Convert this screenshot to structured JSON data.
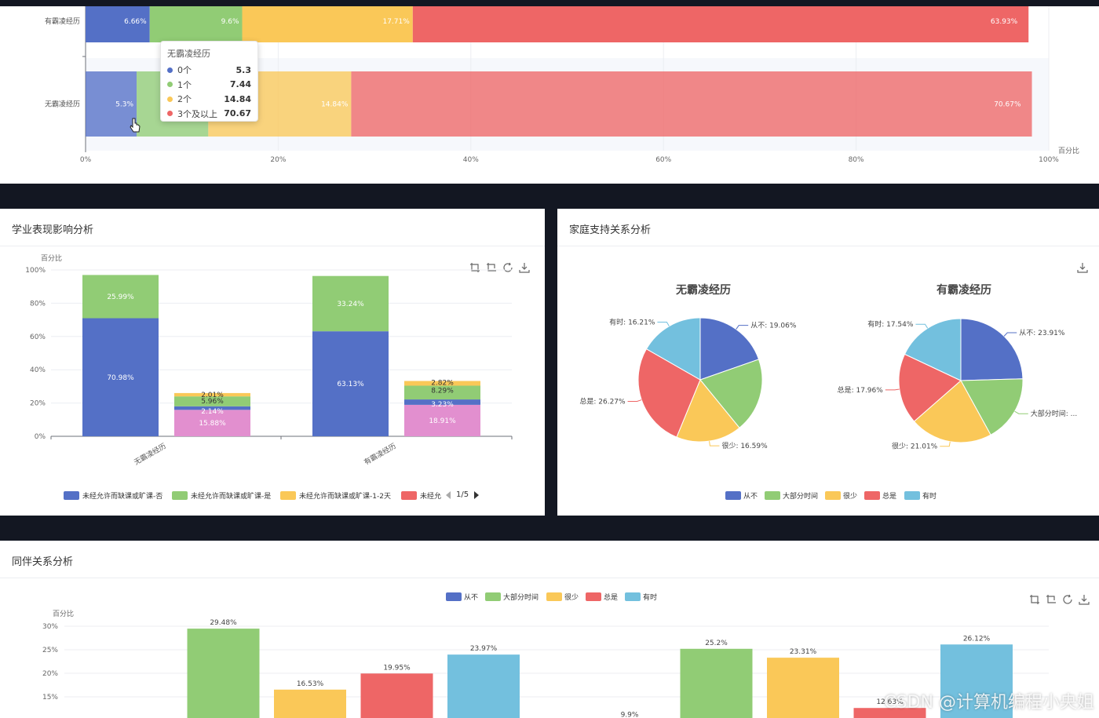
{
  "panels": {
    "academic_title": "学业表现影响分析",
    "family_title": "家庭支持关系分析",
    "peer_title": "同伴关系分析"
  },
  "colors": {
    "blue": "#5470c6",
    "green": "#91cc75",
    "yellow": "#fac858",
    "red": "#ee6666",
    "lightblue": "#73c0de",
    "pink": "#e28fcf"
  },
  "tooltip": {
    "title": "无霸凌经历",
    "rows": [
      {
        "label": "0个",
        "value": "5.3"
      },
      {
        "label": "1个",
        "value": "7.44"
      },
      {
        "label": "2个",
        "value": "14.84"
      },
      {
        "label": "3个及以上",
        "value": "70.67"
      }
    ]
  },
  "watermark": "CSDN @计算机编程小央姐",
  "chart_data": [
    {
      "type": "bar",
      "orientation": "horizontal-stacked",
      "categories": [
        "有霸凌经历",
        "无霸凌经历"
      ],
      "series": [
        {
          "name": "0个",
          "values": [
            6.66,
            5.3
          ],
          "labels": [
            "6.66%",
            "5.3%"
          ]
        },
        {
          "name": "1个",
          "values": [
            9.6,
            7.44
          ],
          "labels": [
            "9.6%",
            ""
          ]
        },
        {
          "name": "2个",
          "values": [
            17.71,
            14.84
          ],
          "labels": [
            "17.71%",
            "14.84%"
          ]
        },
        {
          "name": "3个及以上",
          "values": [
            63.93,
            70.67
          ],
          "labels": [
            "63.93%",
            "70.67%"
          ]
        }
      ],
      "xlabel": "百分比",
      "xticks": [
        "0%",
        "20%",
        "40%",
        "60%",
        "80%",
        "100%"
      ],
      "xlim": [
        0,
        100
      ]
    },
    {
      "type": "bar",
      "orientation": "vertical-stacked",
      "categories": [
        "无霸凌经历",
        "有霸凌经历"
      ],
      "groups": [
        {
          "stack": "left",
          "segments": [
            {
              "values": [
                70.98,
                63.13
              ],
              "labels": [
                "70.98%",
                "63.13%"
              ],
              "color": "blue"
            },
            {
              "values": [
                25.99,
                33.24
              ],
              "labels": [
                "25.99%",
                "33.24%"
              ],
              "color": "green"
            }
          ]
        },
        {
          "stack": "right",
          "segments": [
            {
              "values": [
                15.88,
                18.91
              ],
              "labels": [
                "15.88%",
                "18.91%"
              ],
              "color": "pink"
            },
            {
              "values": [
                2.14,
                3.23
              ],
              "labels": [
                "2.14%",
                "3.23%"
              ],
              "color": "blue"
            },
            {
              "values": [
                5.96,
                8.29
              ],
              "labels": [
                "5.96%",
                "8.29%"
              ],
              "color": "green"
            },
            {
              "values": [
                2.01,
                2.82
              ],
              "labels": [
                "2.01%",
                "2.82%"
              ],
              "color": "yellow"
            }
          ]
        }
      ],
      "ylabel": "百分比",
      "yticks": [
        "0%",
        "20%",
        "40%",
        "60%",
        "80%",
        "100%"
      ],
      "ylim": [
        0,
        100
      ],
      "legend": [
        "未经允许而缺课或旷课-否",
        "未经允许而缺课或旷课-是",
        "未经允许而缺课或旷课-1-2天",
        "未经允"
      ],
      "legend_colors": [
        "blue",
        "green",
        "yellow",
        "red"
      ],
      "legend_page": "1/5"
    },
    {
      "type": "pie",
      "charts": [
        {
          "title": "无霸凌经历",
          "slices": [
            {
              "name": "从不",
              "value": 19.06,
              "label": "从不: 19.06%"
            },
            {
              "name": "大部分时间",
              "value": 18.88,
              "label": ""
            },
            {
              "name": "很少",
              "value": 16.59,
              "label": "很少: 16.59%"
            },
            {
              "name": "总是",
              "value": 26.27,
              "label": "总是: 26.27%"
            },
            {
              "name": "有时",
              "value": 16.21,
              "label": "有时: 16.21%"
            }
          ]
        },
        {
          "title": "有霸凌经历",
          "slices": [
            {
              "name": "从不",
              "value": 23.91,
              "label": "从不: 23.91%"
            },
            {
              "name": "大部分时间",
              "value": 17.0,
              "label": "大部分时间: ..."
            },
            {
              "name": "很少",
              "value": 21.01,
              "label": "很少: 21.01%"
            },
            {
              "name": "总是",
              "value": 17.96,
              "label": "总是: 17.96%"
            },
            {
              "name": "有时",
              "value": 17.54,
              "label": "有时: 17.54%"
            }
          ]
        }
      ],
      "legend": [
        "从不",
        "大部分时间",
        "很少",
        "总是",
        "有时"
      ]
    },
    {
      "type": "bar",
      "orientation": "vertical-grouped",
      "groups": [
        {
          "values": [
            null,
            29.48,
            16.53,
            19.95,
            23.97
          ]
        },
        {
          "values": [
            9.9,
            25.2,
            23.31,
            12.63,
            26.12
          ]
        }
      ],
      "labels": [
        [
          "",
          "29.48%",
          "16.53%",
          "19.95%",
          "23.97%"
        ],
        [
          "9.9%",
          "25.2%",
          "23.31%",
          "12.63%",
          "26.12%"
        ]
      ],
      "series_names": [
        "从不",
        "大部分时间",
        "很少",
        "总是",
        "有时"
      ],
      "ylabel": "百分比",
      "yticks": [
        "30%",
        "25%",
        "20%",
        "15%"
      ]
    }
  ]
}
